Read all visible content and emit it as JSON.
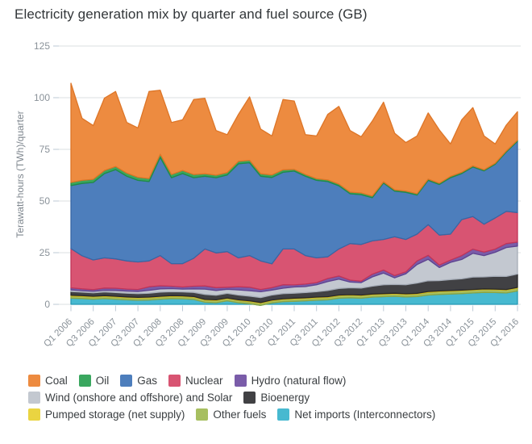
{
  "title": "Electricity generation mix by quarter and fuel source (GB)",
  "y_axis": {
    "label": "Terawatt-hours (TWh)/quarter",
    "ticks": [
      0,
      25,
      50,
      75,
      100,
      125
    ]
  },
  "x_axis": {
    "tick_labels": [
      "Q1 2006",
      "Q3 2006",
      "Q1 2007",
      "Q3 2007",
      "Q1 2008",
      "Q3 2008",
      "Q1 2009",
      "Q3 2009",
      "Q1 2010",
      "Q3 2010",
      "Q1 2011",
      "Q3 2011",
      "Q1 2012",
      "Q3 2012",
      "Q1 2013",
      "Q3 2013",
      "Q1 2014",
      "Q3 2014",
      "Q1 2015",
      "Q3 2015",
      "Q1 2016"
    ]
  },
  "chart_data": {
    "type": "area",
    "stacked": true,
    "title": "Electricity generation mix by quarter and fuel source (GB)",
    "xlabel": "",
    "ylabel": "Terawatt-hours (TWh)/quarter",
    "ylim": [
      0,
      125
    ],
    "grid": "horizontal",
    "legend_position": "bottom",
    "x": [
      "Q1 2006",
      "Q2 2006",
      "Q3 2006",
      "Q4 2006",
      "Q1 2007",
      "Q2 2007",
      "Q3 2007",
      "Q4 2007",
      "Q1 2008",
      "Q2 2008",
      "Q3 2008",
      "Q4 2008",
      "Q1 2009",
      "Q2 2009",
      "Q3 2009",
      "Q4 2009",
      "Q1 2010",
      "Q2 2010",
      "Q3 2010",
      "Q4 2010",
      "Q1 2011",
      "Q2 2011",
      "Q3 2011",
      "Q4 2011",
      "Q1 2012",
      "Q2 2012",
      "Q3 2012",
      "Q4 2012",
      "Q1 2013",
      "Q2 2013",
      "Q3 2013",
      "Q4 2013",
      "Q1 2014",
      "Q2 2014",
      "Q3 2014",
      "Q4 2014",
      "Q1 2015",
      "Q2 2015",
      "Q3 2015",
      "Q4 2015",
      "Q1 2016"
    ],
    "stack_order_bottom_to_top": [
      "net_imports",
      "other_fuels",
      "pumped_storage",
      "bioenergy",
      "wind_solar",
      "hydro",
      "nuclear",
      "gas",
      "oil",
      "coal"
    ],
    "series": [
      {
        "id": "coal",
        "name": "Coal",
        "color": "#ED8B40",
        "edge": "#DD7527",
        "values": [
          48.0,
          30.0,
          26.0,
          35.0,
          36.3,
          24.5,
          23.9,
          42.1,
          31.0,
          25.2,
          24.5,
          36.3,
          36.5,
          21.6,
          18.3,
          22.7,
          30.7,
          21.6,
          18.9,
          34.0,
          33.1,
          19.3,
          20.7,
          31.7,
          37.6,
          29.8,
          27.2,
          36.3,
          38.5,
          27.4,
          23.5,
          28.0,
          32.0,
          25.8,
          15.7,
          25.4,
          28.2,
          16.4,
          9.3,
          12.5,
          13.8
        ]
      },
      {
        "id": "oil",
        "name": "Oil",
        "color": "#3AA75F",
        "edge": "#208B46",
        "values": [
          1.5,
          1.5,
          1.5,
          1.5,
          1.5,
          1.5,
          1.5,
          1.5,
          1.5,
          1.5,
          1.5,
          1.5,
          1.2,
          1.2,
          1.2,
          1.2,
          1.2,
          1.2,
          1.2,
          1.2,
          0.8,
          0.8,
          0.8,
          0.8,
          0.8,
          0.8,
          0.8,
          0.8,
          0.6,
          0.6,
          0.6,
          0.6,
          0.6,
          0.6,
          0.6,
          0.6,
          0.5,
          0.5,
          0.5,
          0.5,
          0.5
        ]
      },
      {
        "id": "gas",
        "name": "Gas",
        "color": "#4D7EBC",
        "edge": "#3867A4",
        "values": [
          30.5,
          35.0,
          37.5,
          40.8,
          43.2,
          41.0,
          39.5,
          38.4,
          47.5,
          41.6,
          43.6,
          39.0,
          35.2,
          36.4,
          37.1,
          45.5,
          44.9,
          41.0,
          41.8,
          37.1,
          37.7,
          38.4,
          37.5,
          36.4,
          30.6,
          24.1,
          24.1,
          20.9,
          27.3,
          22.1,
          22.8,
          18.9,
          21.4,
          24.5,
          27.3,
          22.3,
          24.0,
          25.8,
          26.0,
          28.7,
          34.5
        ]
      },
      {
        "id": "nuclear",
        "name": "Nuclear",
        "color": "#D85472",
        "edge": "#C13458",
        "values": [
          19.0,
          16.0,
          14.4,
          14.6,
          14.2,
          13.6,
          13.3,
          12.5,
          14.6,
          10.9,
          11.3,
          13.5,
          17.9,
          16.8,
          17.2,
          14.0,
          15.3,
          13.8,
          11.5,
          17.3,
          17.4,
          13.8,
          12.0,
          10.5,
          13.1,
          17.7,
          17.8,
          16.1,
          14.8,
          18.8,
          15.7,
          13.0,
          14.9,
          14.5,
          12.6,
          17.4,
          15.8,
          13.5,
          15.1,
          15.6,
          14.3
        ]
      },
      {
        "id": "hydro",
        "name": "Hydro (natural flow)",
        "color": "#7A5CA9",
        "edge": "#5D4390",
        "values": [
          1.0,
          0.9,
          0.8,
          1.1,
          1.1,
          1.0,
          1.0,
          1.7,
          1.5,
          1.2,
          1.0,
          1.3,
          1.5,
          1.4,
          1.0,
          1.5,
          1.7,
          1.1,
          1.2,
          1.7,
          1.0,
          1.2,
          1.0,
          1.5,
          1.5,
          0.9,
          0.7,
          1.3,
          1.5,
          1.1,
          0.9,
          1.7,
          1.9,
          1.2,
          1.1,
          1.9,
          2.0,
          1.7,
          1.5,
          1.9,
          1.9
        ]
      },
      {
        "id": "wind_solar",
        "name": "Wind (onshore and offshore) and Solar",
        "color": "#C3C8D0",
        "edge": "#A6ADB8",
        "values": [
          0.8,
          0.7,
          0.7,
          0.8,
          1.0,
          1.0,
          1.0,
          1.4,
          1.6,
          1.5,
          1.4,
          1.7,
          2.6,
          2.3,
          2.0,
          2.5,
          2.6,
          2.8,
          2.4,
          2.6,
          3.0,
          2.9,
          3.4,
          4.3,
          4.5,
          2.8,
          2.6,
          4.5,
          5.6,
          3.2,
          5.3,
          9.0,
          10.4,
          6.3,
          8.3,
          9.3,
          11.5,
          10.3,
          11.6,
          14.0,
          13.5
        ]
      },
      {
        "id": "bioenergy",
        "name": "Bioenergy",
        "color": "#414144",
        "edge": "#28282A",
        "values": [
          1.8,
          1.7,
          1.7,
          1.8,
          1.8,
          1.8,
          1.8,
          1.9,
          2.0,
          1.9,
          1.9,
          2.0,
          2.4,
          2.2,
          2.2,
          2.3,
          2.3,
          2.4,
          2.4,
          2.5,
          2.4,
          2.5,
          2.6,
          3.0,
          3.2,
          3.3,
          3.4,
          3.8,
          4.3,
          4.2,
          4.4,
          5.0,
          5.2,
          5.0,
          5.3,
          5.5,
          6.0,
          5.8,
          6.2,
          6.3,
          6.5
        ]
      },
      {
        "id": "pumped_storage",
        "name": "Pumped storage (net supply)",
        "color": "#EAD441",
        "edge": "#CBB41E",
        "values": [
          0.4,
          0.4,
          0.4,
          0.4,
          0.4,
          0.4,
          0.4,
          0.4,
          0.4,
          0.4,
          0.4,
          0.4,
          0.4,
          0.4,
          0.4,
          0.4,
          0.4,
          0.4,
          0.4,
          0.4,
          0.4,
          0.4,
          0.4,
          0.4,
          0.4,
          0.4,
          0.4,
          0.4,
          0.4,
          0.4,
          0.4,
          0.4,
          0.4,
          0.4,
          0.4,
          0.4,
          0.4,
          0.4,
          0.4,
          0.4,
          0.4
        ]
      },
      {
        "id": "other_fuels",
        "name": "Other fuels",
        "color": "#A7BF60",
        "edge": "#8BA441",
        "values": [
          1.0,
          1.0,
          1.0,
          1.0,
          1.0,
          1.0,
          1.0,
          1.0,
          1.0,
          1.0,
          1.0,
          1.0,
          1.0,
          1.0,
          1.0,
          1.0,
          1.0,
          1.0,
          1.0,
          1.0,
          1.1,
          1.1,
          1.1,
          1.1,
          1.1,
          1.1,
          1.1,
          1.1,
          1.1,
          1.1,
          1.1,
          1.1,
          1.3,
          1.3,
          1.3,
          1.3,
          1.3,
          1.3,
          1.3,
          1.3,
          1.3
        ]
      },
      {
        "id": "net_imports",
        "name": "Net imports (Interconnectors)",
        "color": "#47B9D0",
        "edge": "#2799B3",
        "values": [
          3.0,
          2.8,
          2.5,
          2.8,
          2.5,
          2.2,
          2.0,
          2.1,
          2.5,
          2.8,
          2.7,
          2.4,
          1.0,
          0.8,
          1.7,
          0.8,
          0.3,
          -0.5,
          0.7,
          1.3,
          1.5,
          1.7,
          2.0,
          2.2,
          3.0,
          3.2,
          3.0,
          3.5,
          3.7,
          3.9,
          3.6,
          3.8,
          4.5,
          4.8,
          5.0,
          5.2,
          5.5,
          5.8,
          5.7,
          5.5,
          6.5
        ]
      }
    ]
  },
  "legend": {
    "rows": [
      [
        "coal",
        "oil",
        "gas",
        "nuclear",
        "hydro"
      ],
      [
        "wind_solar",
        "bioenergy"
      ],
      [
        "pumped_storage",
        "other_fuels",
        "net_imports"
      ]
    ]
  }
}
